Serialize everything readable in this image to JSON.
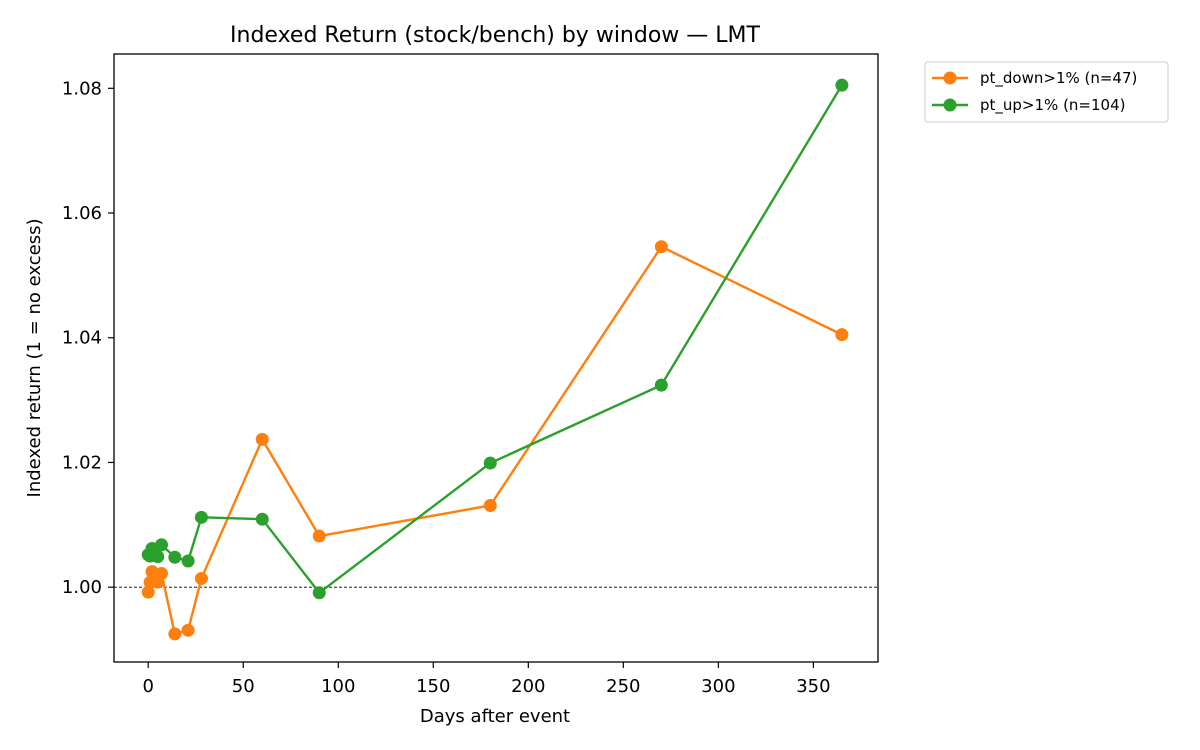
{
  "chart_data": {
    "type": "line",
    "title": "Indexed Return (stock/bench) by window — LMT",
    "xlabel": "Days after event",
    "ylabel": "Indexed return (1 = no excess)",
    "xlim": [
      -18,
      384
    ],
    "ylim": [
      0.988,
      1.0855
    ],
    "x_ticks": [
      0,
      50,
      100,
      150,
      200,
      250,
      300,
      350
    ],
    "y_ticks": [
      1.0,
      1.02,
      1.04,
      1.06,
      1.08
    ],
    "x_tick_labels": [
      "0",
      "50",
      "100",
      "150",
      "200",
      "250",
      "300",
      "350"
    ],
    "y_tick_labels": [
      "1.00",
      "1.02",
      "1.04",
      "1.06",
      "1.08"
    ],
    "grid": false,
    "reference_line": {
      "y": 1.0,
      "style": "dashed",
      "color": "#000000"
    },
    "legend": {
      "placement": "outside-top-right"
    },
    "series": [
      {
        "name": "pt_down>1% (n=47)",
        "color": "#ff7f0e",
        "x": [
          0,
          1,
          2,
          3,
          5,
          7,
          14,
          21,
          28,
          60,
          90,
          180,
          270,
          365
        ],
        "values": [
          0.9992,
          1.0008,
          1.0025,
          1.0013,
          1.0008,
          1.0022,
          0.9925,
          0.9931,
          1.0014,
          1.0237,
          1.0082,
          1.0131,
          1.0546,
          1.0405
        ]
      },
      {
        "name": "pt_up>1% (n=104)",
        "color": "#2ca02c",
        "x": [
          0,
          1,
          2,
          3,
          5,
          7,
          14,
          21,
          28,
          60,
          90,
          180,
          270,
          365
        ],
        "values": [
          1.0052,
          1.005,
          1.0062,
          1.0056,
          1.0049,
          1.0068,
          1.0048,
          1.0042,
          1.0112,
          1.0109,
          0.9991,
          1.0199,
          1.0324,
          1.0805
        ]
      }
    ]
  }
}
